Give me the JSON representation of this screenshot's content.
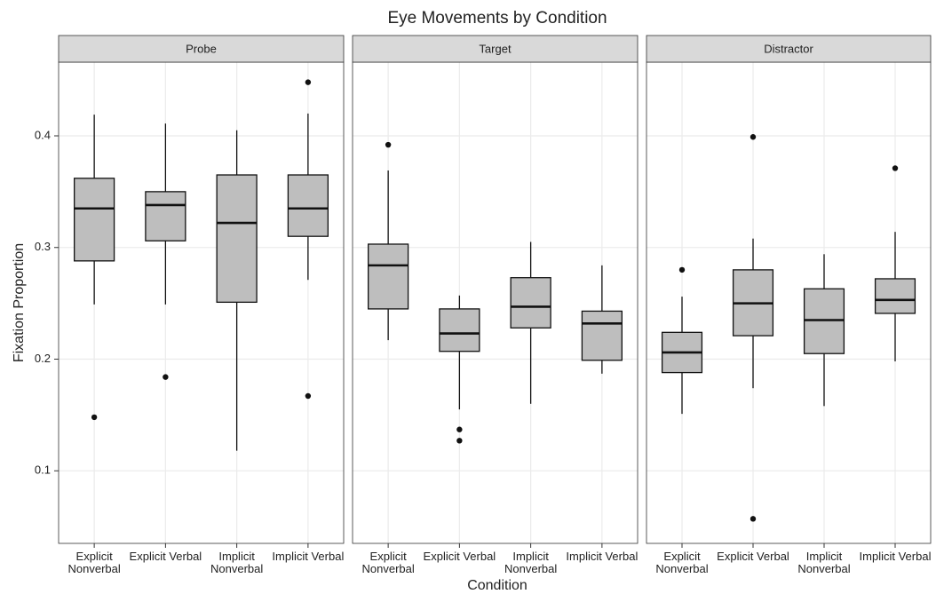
{
  "chart_data": {
    "type": "box",
    "title": "Eye Movements by Condition",
    "x_label": "Condition",
    "y_label": "Fixation Proportion",
    "ylim": [
      0.035,
      0.466
    ],
    "yticks": [
      0.1,
      0.2,
      0.3,
      0.4
    ],
    "grid": true,
    "fill": "#bebebe",
    "categories": [
      "Explicit Nonverbal",
      "Explicit Verbal",
      "Implicit Nonverbal",
      "Implicit Verbal"
    ],
    "facets": [
      {
        "name": "Probe",
        "boxes": [
          {
            "whisker_low": 0.249,
            "q1": 0.288,
            "median": 0.335,
            "q3": 0.362,
            "whisker_high": 0.419,
            "outliers": [
              0.148
            ]
          },
          {
            "whisker_low": 0.249,
            "q1": 0.306,
            "median": 0.338,
            "q3": 0.35,
            "whisker_high": 0.411,
            "outliers": [
              0.184
            ]
          },
          {
            "whisker_low": 0.118,
            "q1": 0.251,
            "median": 0.322,
            "q3": 0.365,
            "whisker_high": 0.405,
            "outliers": []
          },
          {
            "whisker_low": 0.271,
            "q1": 0.31,
            "median": 0.335,
            "q3": 0.365,
            "whisker_high": 0.42,
            "outliers": [
              0.448,
              0.167
            ]
          }
        ]
      },
      {
        "name": "Target",
        "boxes": [
          {
            "whisker_low": 0.217,
            "q1": 0.245,
            "median": 0.284,
            "q3": 0.303,
            "whisker_high": 0.369,
            "outliers": [
              0.392
            ]
          },
          {
            "whisker_low": 0.155,
            "q1": 0.207,
            "median": 0.223,
            "q3": 0.245,
            "whisker_high": 0.257,
            "outliers": [
              0.137,
              0.127
            ]
          },
          {
            "whisker_low": 0.16,
            "q1": 0.228,
            "median": 0.247,
            "q3": 0.273,
            "whisker_high": 0.305,
            "outliers": []
          },
          {
            "whisker_low": 0.187,
            "q1": 0.199,
            "median": 0.232,
            "q3": 0.243,
            "whisker_high": 0.284,
            "outliers": []
          }
        ]
      },
      {
        "name": "Distractor",
        "boxes": [
          {
            "whisker_low": 0.151,
            "q1": 0.188,
            "median": 0.206,
            "q3": 0.224,
            "whisker_high": 0.256,
            "outliers": [
              0.28
            ]
          },
          {
            "whisker_low": 0.174,
            "q1": 0.221,
            "median": 0.25,
            "q3": 0.28,
            "whisker_high": 0.308,
            "outliers": [
              0.399,
              0.057
            ]
          },
          {
            "whisker_low": 0.158,
            "q1": 0.205,
            "median": 0.235,
            "q3": 0.263,
            "whisker_high": 0.294,
            "outliers": []
          },
          {
            "whisker_low": 0.198,
            "q1": 0.241,
            "median": 0.253,
            "q3": 0.272,
            "whisker_high": 0.314,
            "outliers": [
              0.371
            ]
          }
        ]
      }
    ]
  }
}
